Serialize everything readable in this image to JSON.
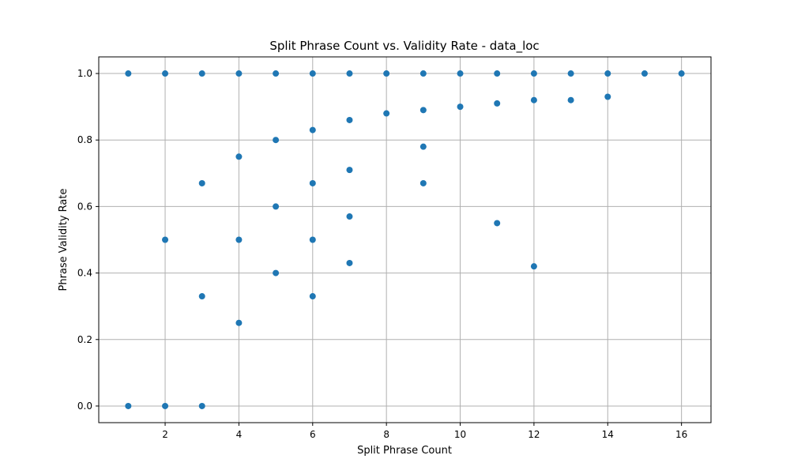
{
  "chart_data": {
    "type": "scatter",
    "title": "Split Phrase Count vs. Validity Rate - data_loc",
    "xlabel": "Split Phrase Count",
    "ylabel": "Phrase Validity Rate",
    "xlim": [
      0.2,
      16.8
    ],
    "ylim": [
      -0.05,
      1.05
    ],
    "xticks": [
      2,
      4,
      6,
      8,
      10,
      12,
      14,
      16
    ],
    "yticks": [
      0.0,
      0.2,
      0.4,
      0.6,
      0.8,
      1.0
    ],
    "xtick_labels": [
      "2",
      "4",
      "6",
      "8",
      "10",
      "12",
      "14",
      "16"
    ],
    "ytick_labels": [
      "0.0",
      "0.2",
      "0.4",
      "0.6",
      "0.8",
      "1.0"
    ],
    "grid": true,
    "point_color": "#1f77b4",
    "points": [
      {
        "x": 1,
        "y": 1.0
      },
      {
        "x": 1,
        "y": 0.0
      },
      {
        "x": 2,
        "y": 1.0
      },
      {
        "x": 2,
        "y": 0.5
      },
      {
        "x": 2,
        "y": 0.0
      },
      {
        "x": 3,
        "y": 1.0
      },
      {
        "x": 3,
        "y": 0.67
      },
      {
        "x": 3,
        "y": 0.33
      },
      {
        "x": 3,
        "y": 0.0
      },
      {
        "x": 4,
        "y": 1.0
      },
      {
        "x": 4,
        "y": 0.75
      },
      {
        "x": 4,
        "y": 0.5
      },
      {
        "x": 4,
        "y": 0.25
      },
      {
        "x": 5,
        "y": 1.0
      },
      {
        "x": 5,
        "y": 0.8
      },
      {
        "x": 5,
        "y": 0.6
      },
      {
        "x": 5,
        "y": 0.4
      },
      {
        "x": 6,
        "y": 1.0
      },
      {
        "x": 6,
        "y": 0.83
      },
      {
        "x": 6,
        "y": 0.67
      },
      {
        "x": 6,
        "y": 0.5
      },
      {
        "x": 6,
        "y": 0.33
      },
      {
        "x": 7,
        "y": 1.0
      },
      {
        "x": 7,
        "y": 0.86
      },
      {
        "x": 7,
        "y": 0.71
      },
      {
        "x": 7,
        "y": 0.57
      },
      {
        "x": 7,
        "y": 0.43
      },
      {
        "x": 8,
        "y": 1.0
      },
      {
        "x": 8,
        "y": 0.88
      },
      {
        "x": 9,
        "y": 1.0
      },
      {
        "x": 9,
        "y": 0.89
      },
      {
        "x": 9,
        "y": 0.78
      },
      {
        "x": 9,
        "y": 0.67
      },
      {
        "x": 10,
        "y": 1.0
      },
      {
        "x": 10,
        "y": 0.9
      },
      {
        "x": 11,
        "y": 1.0
      },
      {
        "x": 11,
        "y": 0.91
      },
      {
        "x": 11,
        "y": 0.55
      },
      {
        "x": 12,
        "y": 1.0
      },
      {
        "x": 12,
        "y": 0.92
      },
      {
        "x": 12,
        "y": 0.42
      },
      {
        "x": 13,
        "y": 1.0
      },
      {
        "x": 13,
        "y": 0.92
      },
      {
        "x": 14,
        "y": 1.0
      },
      {
        "x": 14,
        "y": 0.93
      },
      {
        "x": 15,
        "y": 1.0
      },
      {
        "x": 16,
        "y": 1.0
      }
    ]
  }
}
